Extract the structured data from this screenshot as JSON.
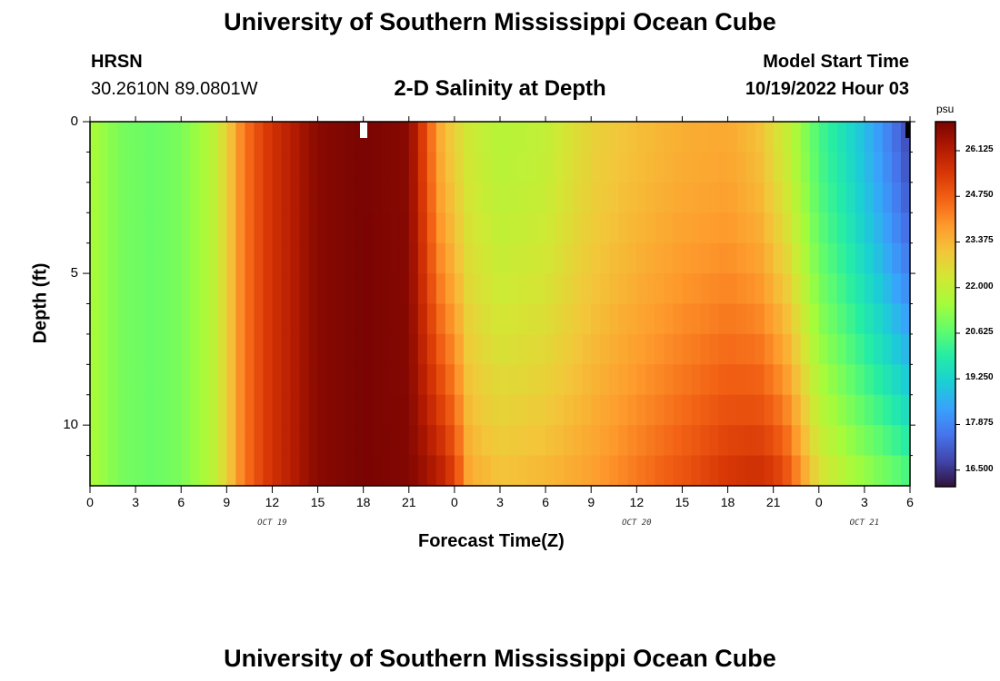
{
  "page": {
    "top_title": "University of Southern Mississippi Ocean Cube",
    "bottom_title": "University of Southern Mississippi Ocean Cube",
    "station": "HRSN",
    "coordinates": "30.2610N  89.0801W",
    "plot_title": "2-D Salinity at Depth",
    "model_start_label": "Model Start Time",
    "model_start_value": "10/19/2022 Hour 03"
  },
  "chart_data": {
    "type": "heatmap",
    "title": "2-D Salinity at Depth",
    "xlabel": "Forecast Time(Z)",
    "ylabel": "Depth (ft)",
    "units": "psu",
    "x_hours": [
      0,
      3,
      6,
      9,
      12,
      15,
      18,
      21,
      24,
      27,
      30,
      33,
      36,
      39,
      42,
      45,
      48,
      51,
      54
    ],
    "x_tick_labels": [
      "0",
      "3",
      "6",
      "9",
      "12",
      "15",
      "18",
      "21",
      "0",
      "3",
      "6",
      "9",
      "12",
      "15",
      "18",
      "21",
      "0",
      "3",
      "6"
    ],
    "x_day_labels": [
      {
        "label": "OCT 19",
        "hour": 12
      },
      {
        "label": "OCT 20",
        "hour": 36
      },
      {
        "label": "OCT 21",
        "hour": 51
      }
    ],
    "y_ticks": [
      0,
      5,
      10
    ],
    "y_minor_ticks": [
      1,
      2,
      3,
      4,
      6,
      7,
      8,
      9,
      11
    ],
    "ylim": [
      0,
      12
    ],
    "xlim": [
      0,
      54
    ],
    "colorbar": {
      "label": "psu",
      "min": 16.0,
      "max": 27.0,
      "ticks": [
        "26.125",
        "24.750",
        "23.375",
        "22.000",
        "20.625",
        "19.250",
        "17.875",
        "16.500"
      ],
      "tick_values": [
        26.125,
        24.75,
        23.375,
        22.0,
        20.625,
        19.25,
        17.875,
        16.5
      ]
    },
    "colormap": [
      "#30123b",
      "#4145ab",
      "#4675ed",
      "#39a2fc",
      "#1bcfd4",
      "#24eca6",
      "#61fc6c",
      "#a4fc3b",
      "#d1e834",
      "#f3c63a",
      "#fe9b2d",
      "#f36315",
      "#d93806",
      "#b11901",
      "#7a0402"
    ],
    "depths_ft": [
      0,
      1,
      2,
      3,
      4,
      5,
      6,
      7,
      8,
      9,
      10,
      11
    ],
    "columns": [
      {
        "hour": 0,
        "top": 21.6,
        "bottom": 21.6
      },
      {
        "hour": 2,
        "top": 21.0,
        "bottom": 21.0
      },
      {
        "hour": 4,
        "top": 20.8,
        "bottom": 20.8
      },
      {
        "hour": 6,
        "top": 21.0,
        "bottom": 21.0
      },
      {
        "hour": 8,
        "top": 21.8,
        "bottom": 21.8
      },
      {
        "hour": 9,
        "top": 22.8,
        "bottom": 22.8
      },
      {
        "hour": 10,
        "top": 24.2,
        "bottom": 24.2
      },
      {
        "hour": 11,
        "top": 25.0,
        "bottom": 25.0
      },
      {
        "hour": 12,
        "top": 25.6,
        "bottom": 25.6
      },
      {
        "hour": 14,
        "top": 26.4,
        "bottom": 26.4
      },
      {
        "hour": 15,
        "top": 26.8,
        "bottom": 26.8
      },
      {
        "hour": 18,
        "top": 27.0,
        "bottom": 27.0
      },
      {
        "hour": 21,
        "top": 26.8,
        "bottom": 26.9
      },
      {
        "hour": 22,
        "top": 25.2,
        "bottom": 26.6
      },
      {
        "hour": 23,
        "top": 23.6,
        "bottom": 26.2
      },
      {
        "hour": 24,
        "top": 22.8,
        "bottom": 25.4
      },
      {
        "hour": 25,
        "top": 22.2,
        "bottom": 23.6
      },
      {
        "hour": 27,
        "top": 21.8,
        "bottom": 23.2
      },
      {
        "hour": 30,
        "top": 22.0,
        "bottom": 23.4
      },
      {
        "hour": 33,
        "top": 22.8,
        "bottom": 23.8
      },
      {
        "hour": 36,
        "top": 23.2,
        "bottom": 24.4
      },
      {
        "hour": 39,
        "top": 23.5,
        "bottom": 25.0
      },
      {
        "hour": 42,
        "top": 23.6,
        "bottom": 25.6
      },
      {
        "hour": 44,
        "top": 23.2,
        "bottom": 25.8
      },
      {
        "hour": 45,
        "top": 22.6,
        "bottom": 25.6
      },
      {
        "hour": 46,
        "top": 22.0,
        "bottom": 25.0
      },
      {
        "hour": 48,
        "top": 20.4,
        "bottom": 22.6
      },
      {
        "hour": 50,
        "top": 19.4,
        "bottom": 21.8
      },
      {
        "hour": 52,
        "top": 18.2,
        "bottom": 21.2
      },
      {
        "hour": 54,
        "top": 16.8,
        "bottom": 20.6
      }
    ]
  }
}
